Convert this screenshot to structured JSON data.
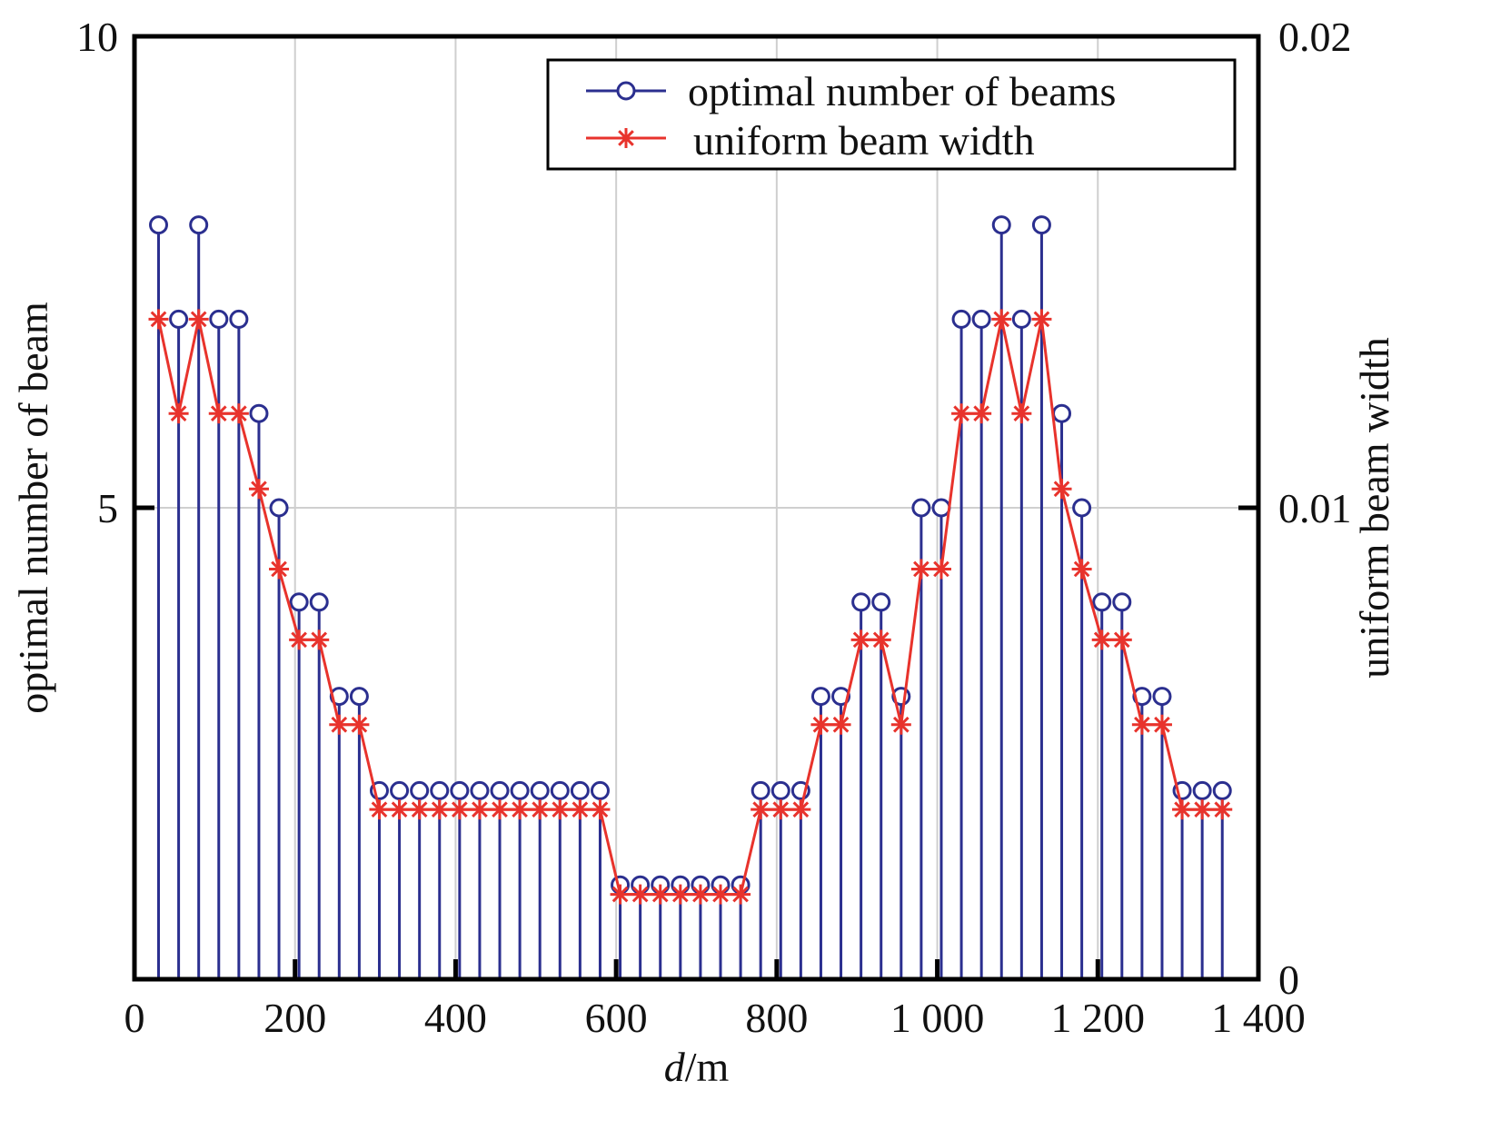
{
  "chart_data": {
    "type": "line",
    "xlabel_italic": "d",
    "xlabel_rest": "/m",
    "ylabel_left": "optimal number of beam",
    "ylabel_right": "uniform beam width",
    "xlim": [
      0,
      1400
    ],
    "ylim_left": [
      0,
      10
    ],
    "ylim_right": [
      0,
      0.02
    ],
    "x_ticks": [
      "0",
      "200",
      "400",
      "600",
      "800",
      "1 000",
      "1 200",
      "1 400"
    ],
    "x_tick_values": [
      0,
      200,
      400,
      600,
      800,
      1000,
      1200,
      1400
    ],
    "y_left_ticks": [
      "10",
      "5"
    ],
    "y_left_tick_values": [
      10,
      5
    ],
    "y_right_ticks": [
      "0.02",
      "0.01",
      "0"
    ],
    "y_right_tick_values": [
      0.02,
      0.01,
      0
    ],
    "grid": true,
    "legend_position": "top-right",
    "x": [
      30,
      55,
      80,
      105,
      130,
      155,
      180,
      205,
      230,
      255,
      280,
      305,
      330,
      355,
      380,
      405,
      430,
      455,
      480,
      505,
      530,
      555,
      580,
      605,
      630,
      655,
      680,
      705,
      730,
      755,
      780,
      805,
      830,
      855,
      880,
      905,
      930,
      955,
      980,
      1005,
      1030,
      1055,
      1080,
      1105,
      1130,
      1155,
      1180,
      1205,
      1230,
      1255,
      1280,
      1305,
      1330,
      1355
    ],
    "series": [
      {
        "name": "optimal number of beams",
        "axis": "left",
        "style": "stem-circle",
        "color": "#2b2f8f",
        "values": [
          8,
          7,
          8,
          7,
          7,
          6,
          5,
          4,
          4,
          3,
          3,
          2,
          2,
          2,
          2,
          2,
          2,
          2,
          2,
          2,
          2,
          2,
          2,
          1,
          1,
          1,
          1,
          1,
          1,
          1,
          2,
          2,
          2,
          3,
          3,
          4,
          4,
          3,
          5,
          5,
          7,
          7,
          8,
          7,
          8,
          6,
          5,
          4,
          4,
          3,
          3,
          2,
          2,
          2
        ]
      },
      {
        "name": "uniform beam width",
        "axis": "right",
        "style": "line-star",
        "color": "#e8332c",
        "values": [
          0.014,
          0.012,
          0.014,
          0.012,
          0.012,
          0.0104,
          0.0087,
          0.0072,
          0.0072,
          0.0054,
          0.0054,
          0.0036,
          0.0036,
          0.0036,
          0.0036,
          0.0036,
          0.0036,
          0.0036,
          0.0036,
          0.0036,
          0.0036,
          0.0036,
          0.0036,
          0.0018,
          0.0018,
          0.0018,
          0.0018,
          0.0018,
          0.0018,
          0.0018,
          0.0036,
          0.0036,
          0.0036,
          0.0054,
          0.0054,
          0.0072,
          0.0072,
          0.0054,
          0.0087,
          0.0087,
          0.012,
          0.012,
          0.014,
          0.012,
          0.014,
          0.0104,
          0.0087,
          0.0072,
          0.0072,
          0.0054,
          0.0054,
          0.0036,
          0.0036,
          0.0036
        ]
      }
    ]
  }
}
